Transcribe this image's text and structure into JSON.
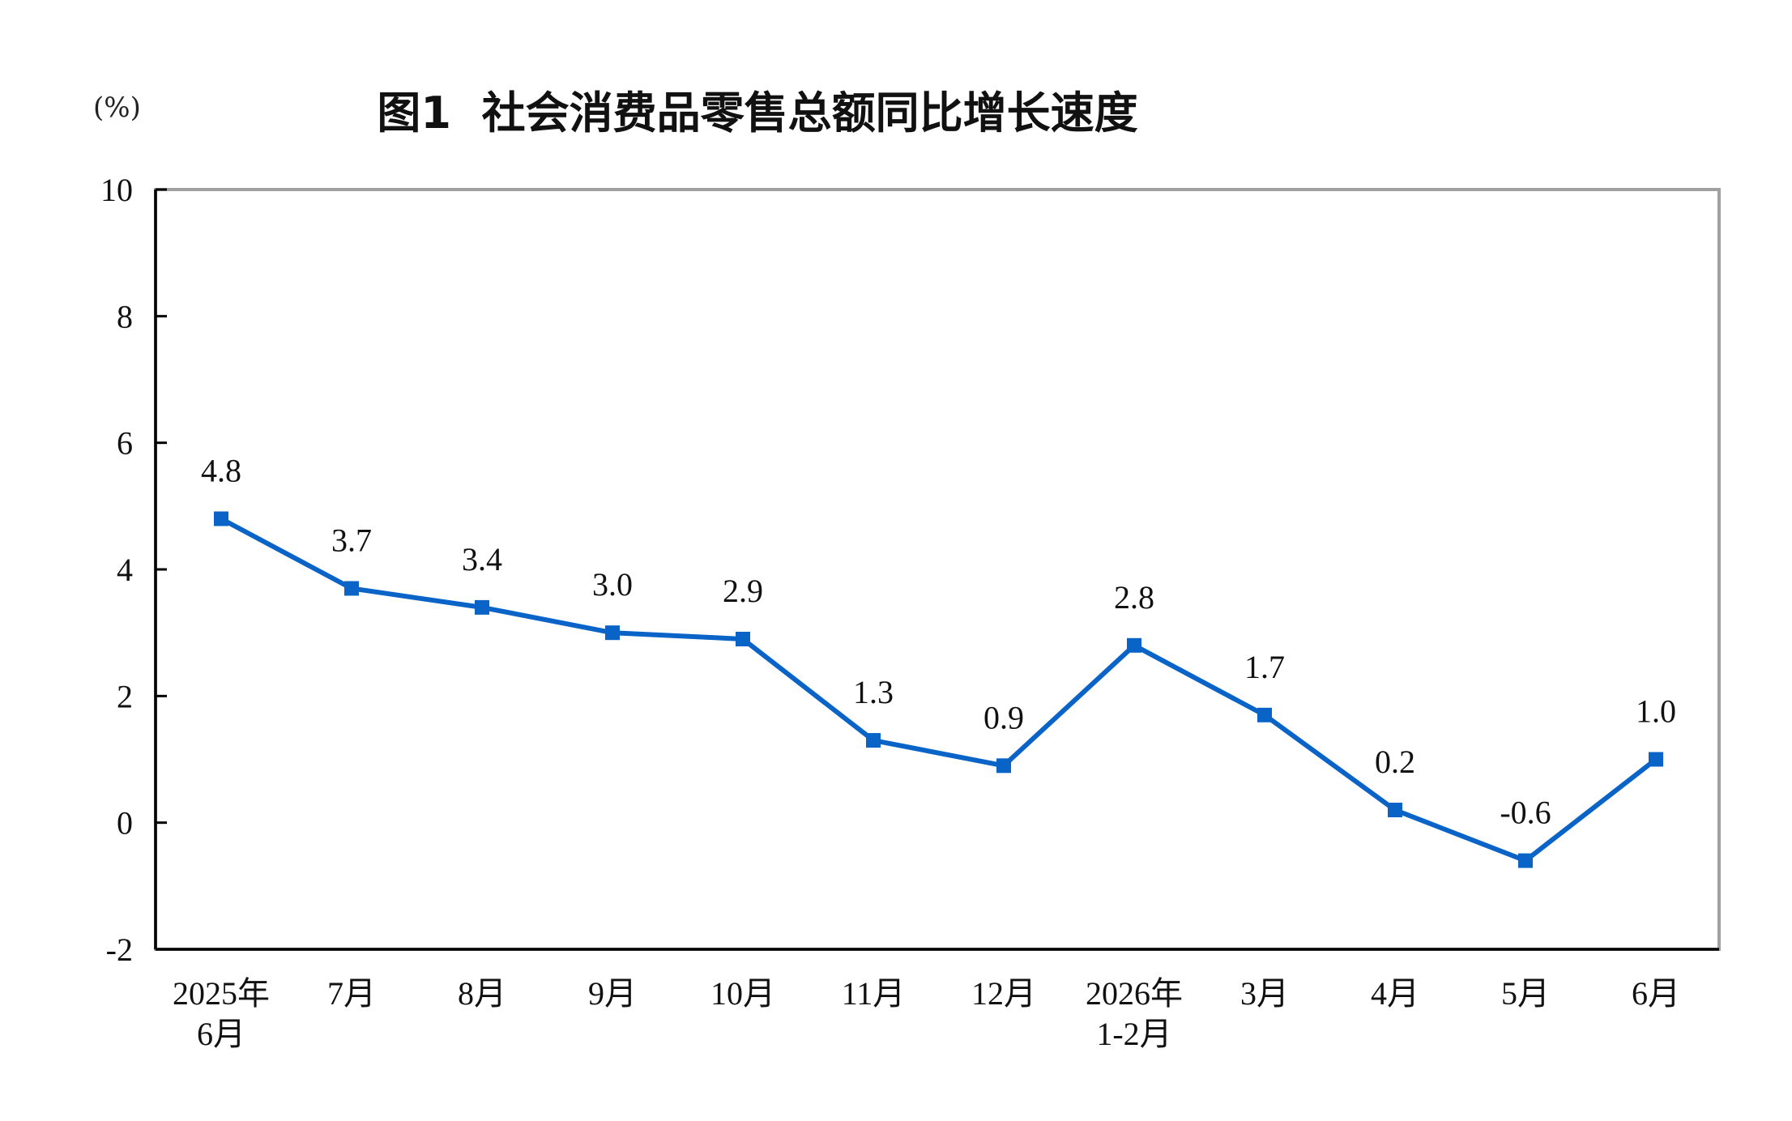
{
  "chart_data": {
    "type": "line",
    "title": "图1  社会消费品零售总额同比增长速度",
    "unit_label": "(%)",
    "categories": [
      [
        "2025年",
        "6月"
      ],
      [
        "7月"
      ],
      [
        "8月"
      ],
      [
        "9月"
      ],
      [
        "10月"
      ],
      [
        "11月"
      ],
      [
        "12月"
      ],
      [
        "2026年",
        "1-2月"
      ],
      [
        "3月"
      ],
      [
        "4月"
      ],
      [
        "5月"
      ],
      [
        "6月"
      ]
    ],
    "series": [
      {
        "values": [
          4.8,
          3.7,
          3.4,
          3.0,
          2.9,
          1.3,
          0.9,
          2.8,
          1.7,
          0.2,
          -0.6,
          1.0
        ],
        "labels": [
          "4.8",
          "3.7",
          "3.4",
          "3.0",
          "2.9",
          "1.3",
          "0.9",
          "2.8",
          "1.7",
          "0.2",
          "-0.6",
          "1.0"
        ],
        "color": "#0a64c8"
      }
    ],
    "ylim": [
      -2,
      10
    ],
    "yticks": [
      -2,
      0,
      2,
      4,
      6,
      8,
      10
    ],
    "grid": false,
    "legend": "none"
  }
}
